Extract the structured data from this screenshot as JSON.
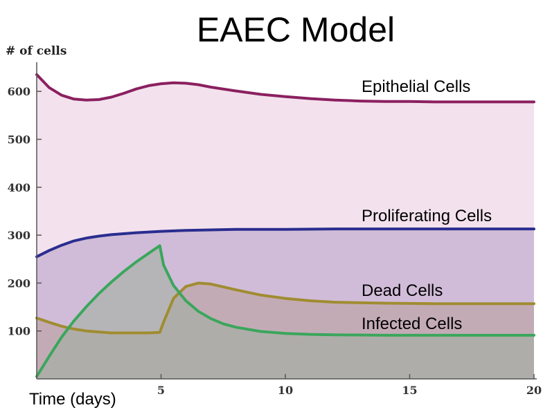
{
  "chart_data": {
    "type": "area",
    "title": "EAEC Model",
    "xlabel": "Time (days)",
    "ylabel": "# of cells",
    "xlim": [
      0,
      20
    ],
    "ylim": [
      0,
      650
    ],
    "x_ticks": [
      5,
      10,
      15,
      20
    ],
    "y_ticks": [
      100,
      200,
      300,
      400,
      500,
      600
    ],
    "grid": false,
    "series": [
      {
        "name": "Epithelial Cells",
        "color": "#8b2060",
        "fill": "#e9cade",
        "x": [
          0,
          0.5,
          1,
          1.5,
          2,
          2.5,
          3,
          3.5,
          4,
          4.5,
          5,
          5.5,
          6,
          6.5,
          7,
          8,
          9,
          10,
          11,
          12,
          13,
          14,
          15,
          16,
          17,
          18,
          19,
          20
        ],
        "values": [
          635,
          608,
          592,
          584,
          582,
          583,
          588,
          596,
          605,
          612,
          616,
          618,
          617,
          614,
          609,
          601,
          594,
          589,
          585,
          582,
          580,
          579,
          579,
          578,
          578,
          578,
          578,
          578
        ]
      },
      {
        "name": "Proliferating Cells",
        "color": "#2a2d8f",
        "fill": "#b39dc6",
        "x": [
          0,
          0.5,
          1,
          1.5,
          2,
          2.5,
          3,
          4,
          5,
          6,
          7,
          8,
          10,
          12,
          14,
          16,
          18,
          20
        ],
        "values": [
          255,
          268,
          279,
          288,
          294,
          298,
          301,
          305,
          308,
          310,
          311,
          312,
          312,
          313,
          313,
          313,
          313,
          313
        ]
      },
      {
        "name": "Dead Cells",
        "color": "#a08c30",
        "fill": "#b89d9a",
        "x": [
          0,
          0.5,
          1,
          1.5,
          2,
          2.5,
          3,
          3.5,
          4,
          4.5,
          4.95,
          5.1,
          5.5,
          6,
          6.5,
          7,
          7.5,
          8,
          9,
          10,
          11,
          12,
          14,
          16,
          18,
          20
        ],
        "values": [
          127,
          118,
          110,
          104,
          100,
          98,
          96,
          96,
          96,
          96,
          97,
          118,
          168,
          193,
          200,
          198,
          192,
          186,
          175,
          168,
          163,
          160,
          158,
          157,
          157,
          157
        ]
      },
      {
        "name": "Infected Cells",
        "color": "#3aa65c",
        "fill": "#9fae9f",
        "x": [
          0,
          0.5,
          1,
          1.5,
          2,
          2.5,
          3,
          3.5,
          4,
          4.5,
          4.95,
          5.1,
          5.5,
          6,
          6.5,
          7,
          7.5,
          8,
          9,
          10,
          11,
          12,
          14,
          16,
          18,
          20
        ],
        "values": [
          5,
          47,
          87,
          121,
          151,
          178,
          202,
          224,
          244,
          262,
          278,
          238,
          195,
          163,
          141,
          126,
          115,
          108,
          99,
          95,
          93,
          92,
          91,
          91,
          91,
          91
        ]
      }
    ]
  }
}
